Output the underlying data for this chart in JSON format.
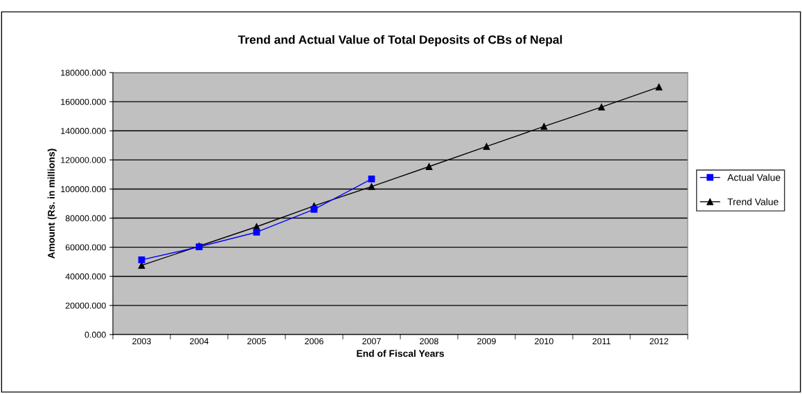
{
  "chart_data": {
    "type": "line",
    "title": "Trend and Actual Value of Total Deposits of CBs of Nepal",
    "xlabel": "End of Fiscal Years",
    "ylabel": "Amount (Rs. in millions)",
    "categories": [
      "2003",
      "2004",
      "2005",
      "2006",
      "2007",
      "2008",
      "2009",
      "2010",
      "2011",
      "2012"
    ],
    "series": [
      {
        "name": "Actual Value",
        "color": "#0000ff",
        "marker": "square",
        "values": [
          51300,
          60300,
          70300,
          86000,
          106900,
          null,
          null,
          null,
          null,
          null
        ]
      },
      {
        "name": "Trend Value",
        "color": "#000000",
        "marker": "triangle",
        "values": [
          47500,
          60800,
          74100,
          88400,
          101700,
          115400,
          129200,
          143000,
          156300,
          170100
        ]
      }
    ],
    "ylim": [
      0,
      180000
    ],
    "yticks": [
      {
        "value": 0,
        "label": "0.000"
      },
      {
        "value": 20000,
        "label": "20000.000"
      },
      {
        "value": 40000,
        "label": "40000.000"
      },
      {
        "value": 60000,
        "label": "60000.000"
      },
      {
        "value": 80000,
        "label": "80000.000"
      },
      {
        "value": 100000,
        "label": "100000.000"
      },
      {
        "value": 120000,
        "label": "120000.000"
      },
      {
        "value": 140000,
        "label": "140000.000"
      },
      {
        "value": 160000,
        "label": "160000.000"
      },
      {
        "value": 180000,
        "label": "180000.000"
      }
    ],
    "grid": "y",
    "legend": "right",
    "line_style": "solid"
  }
}
